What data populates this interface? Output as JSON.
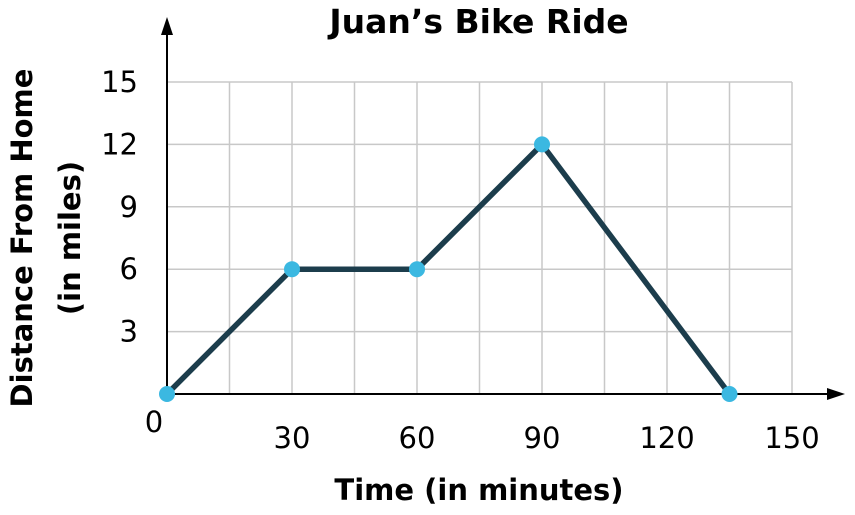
{
  "chart_data": {
    "type": "line",
    "title": "Juan’s Bike Ride",
    "xlabel": "Time (in minutes)",
    "ylabel_lines": [
      "Distance From Home",
      "(in miles)"
    ],
    "origin_label": "0",
    "x_ticks": [
      30,
      60,
      90,
      120,
      150
    ],
    "y_ticks": [
      3,
      6,
      9,
      12,
      15
    ],
    "xlim": [
      0,
      150
    ],
    "ylim": [
      0,
      15
    ],
    "x_grid_step": 15,
    "y_grid_step": 3,
    "grid": true,
    "series": [
      {
        "points": [
          {
            "x": 0,
            "y": 0
          },
          {
            "x": 30,
            "y": 6
          },
          {
            "x": 60,
            "y": 6
          },
          {
            "x": 90,
            "y": 12
          },
          {
            "x": 135,
            "y": 0
          }
        ]
      }
    ],
    "colors": {
      "line": "#1c3d4c",
      "marker": "#3bb8e1"
    }
  }
}
